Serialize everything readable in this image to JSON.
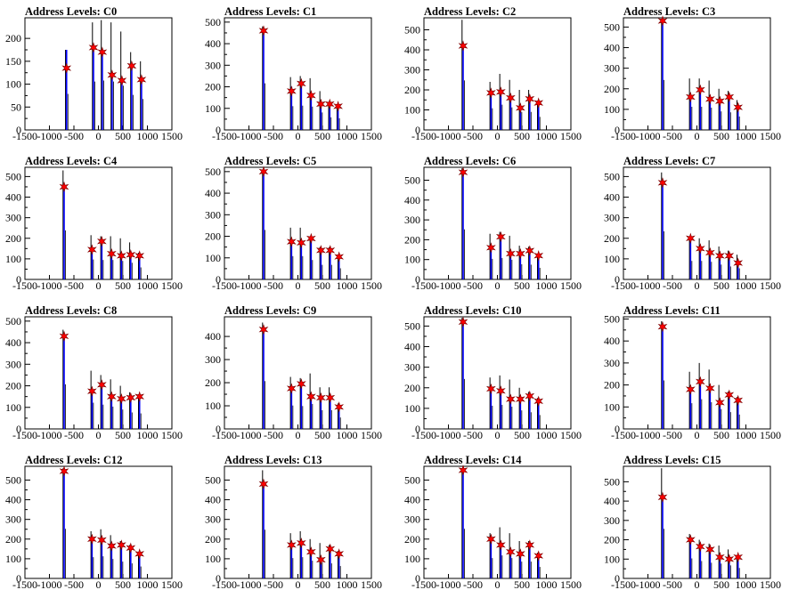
{
  "colors": {
    "histogram": "#000000",
    "fit": "#0000ff",
    "marker": "#ff0000",
    "frame": "#000000"
  },
  "chart_data": [
    {
      "type": "bar",
      "title": "Address Levels: C0",
      "xlim": [
        -1500,
        1500
      ],
      "ylim": [
        0,
        245
      ],
      "xticks": [
        -1500,
        -1000,
        -500,
        0,
        500,
        1000,
        1500
      ],
      "yticks": [
        0,
        50,
        100,
        150,
        200
      ],
      "peaks": [
        {
          "x": -650,
          "hist": 175,
          "fit": 175,
          "marker": 135
        },
        {
          "x": -100,
          "hist": 235,
          "fit": 185,
          "marker": 180
        },
        {
          "x": 80,
          "hist": 240,
          "fit": 170,
          "marker": 170
        },
        {
          "x": 280,
          "hist": 235,
          "fit": 125,
          "marker": 120
        },
        {
          "x": 480,
          "hist": 215,
          "fit": 110,
          "marker": 108
        },
        {
          "x": 680,
          "hist": 170,
          "fit": 140,
          "marker": 140
        },
        {
          "x": 880,
          "hist": 150,
          "fit": 110,
          "marker": 110
        }
      ]
    },
    {
      "type": "bar",
      "title": "Address Levels: C1",
      "xlim": [
        -1500,
        1500
      ],
      "ylim": [
        0,
        520
      ],
      "xticks": [
        -1500,
        -1000,
        -500,
        0,
        500,
        1000,
        1500
      ],
      "yticks": [
        0,
        100,
        200,
        300,
        400,
        500
      ],
      "peaks": [
        {
          "x": -700,
          "hist": 480,
          "fit": 470,
          "marker": 460
        },
        {
          "x": -130,
          "hist": 245,
          "fit": 200,
          "marker": 180
        },
        {
          "x": 70,
          "hist": 250,
          "fit": 220,
          "marker": 215
        },
        {
          "x": 270,
          "hist": 240,
          "fit": 170,
          "marker": 160
        },
        {
          "x": 470,
          "hist": 180,
          "fit": 125,
          "marker": 120
        },
        {
          "x": 650,
          "hist": 130,
          "fit": 125,
          "marker": 120
        },
        {
          "x": 820,
          "hist": 120,
          "fit": 115,
          "marker": 110
        }
      ]
    },
    {
      "type": "bar",
      "title": "Address Levels: C2",
      "xlim": [
        -1500,
        1500
      ],
      "ylim": [
        0,
        560
      ],
      "xticks": [
        -1500,
        -1000,
        -500,
        0,
        500,
        1000,
        1500
      ],
      "yticks": [
        0,
        100,
        200,
        300,
        400,
        500
      ],
      "peaks": [
        {
          "x": -700,
          "hist": 550,
          "fit": 430,
          "marker": 420
        },
        {
          "x": -130,
          "hist": 240,
          "fit": 190,
          "marker": 185
        },
        {
          "x": 70,
          "hist": 280,
          "fit": 200,
          "marker": 190
        },
        {
          "x": 270,
          "hist": 250,
          "fit": 170,
          "marker": 160
        },
        {
          "x": 470,
          "hist": 200,
          "fit": 115,
          "marker": 110
        },
        {
          "x": 660,
          "hist": 200,
          "fit": 160,
          "marker": 155
        },
        {
          "x": 840,
          "hist": 145,
          "fit": 140,
          "marker": 135
        }
      ]
    },
    {
      "type": "bar",
      "title": "Address Levels: C3",
      "xlim": [
        -1500,
        1500
      ],
      "ylim": [
        0,
        545
      ],
      "xticks": [
        -1500,
        -1000,
        -500,
        0,
        500,
        1000,
        1500
      ],
      "yticks": [
        0,
        100,
        200,
        300,
        400,
        500
      ],
      "peaks": [
        {
          "x": -700,
          "hist": 540,
          "fit": 540,
          "marker": 530
        },
        {
          "x": -130,
          "hist": 250,
          "fit": 170,
          "marker": 160
        },
        {
          "x": 70,
          "hist": 250,
          "fit": 200,
          "marker": 195
        },
        {
          "x": 270,
          "hist": 240,
          "fit": 160,
          "marker": 150
        },
        {
          "x": 470,
          "hist": 200,
          "fit": 150,
          "marker": 140
        },
        {
          "x": 660,
          "hist": 190,
          "fit": 165,
          "marker": 160
        },
        {
          "x": 840,
          "hist": 145,
          "fit": 120,
          "marker": 110
        }
      ]
    },
    {
      "type": "bar",
      "title": "Address Levels: C4",
      "xlim": [
        -1500,
        1500
      ],
      "ylim": [
        0,
        545
      ],
      "xticks": [
        -1500,
        -1000,
        -500,
        0,
        500,
        1000,
        1500
      ],
      "yticks": [
        0,
        100,
        200,
        300,
        400,
        500
      ],
      "peaks": [
        {
          "x": -700,
          "hist": 530,
          "fit": 460,
          "marker": 450
        },
        {
          "x": -130,
          "hist": 215,
          "fit": 150,
          "marker": 145
        },
        {
          "x": 70,
          "hist": 210,
          "fit": 190,
          "marker": 185
        },
        {
          "x": 270,
          "hist": 210,
          "fit": 130,
          "marker": 125
        },
        {
          "x": 470,
          "hist": 200,
          "fit": 120,
          "marker": 115
        },
        {
          "x": 660,
          "hist": 180,
          "fit": 125,
          "marker": 120
        },
        {
          "x": 840,
          "hist": 130,
          "fit": 120,
          "marker": 115
        }
      ]
    },
    {
      "type": "bar",
      "title": "Address Levels: C5",
      "xlim": [
        -1500,
        1500
      ],
      "ylim": [
        0,
        520
      ],
      "xticks": [
        -1500,
        -1000,
        -500,
        0,
        500,
        1000,
        1500
      ],
      "yticks": [
        0,
        100,
        200,
        300,
        400,
        500
      ],
      "peaks": [
        {
          "x": -700,
          "hist": 510,
          "fit": 510,
          "marker": 500
        },
        {
          "x": -130,
          "hist": 240,
          "fit": 180,
          "marker": 175
        },
        {
          "x": 70,
          "hist": 240,
          "fit": 175,
          "marker": 170
        },
        {
          "x": 270,
          "hist": 200,
          "fit": 200,
          "marker": 190
        },
        {
          "x": 470,
          "hist": 150,
          "fit": 140,
          "marker": 135
        },
        {
          "x": 660,
          "hist": 150,
          "fit": 140,
          "marker": 135
        },
        {
          "x": 840,
          "hist": 115,
          "fit": 110,
          "marker": 105
        }
      ]
    },
    {
      "type": "bar",
      "title": "Address Levels: C6",
      "xlim": [
        -1500,
        1500
      ],
      "ylim": [
        0,
        565
      ],
      "xticks": [
        -1500,
        -1000,
        -500,
        0,
        500,
        1000,
        1500
      ],
      "yticks": [
        0,
        100,
        200,
        300,
        400,
        500
      ],
      "peaks": [
        {
          "x": -700,
          "hist": 560,
          "fit": 550,
          "marker": 540
        },
        {
          "x": -130,
          "hist": 230,
          "fit": 165,
          "marker": 160
        },
        {
          "x": 70,
          "hist": 240,
          "fit": 220,
          "marker": 215
        },
        {
          "x": 270,
          "hist": 220,
          "fit": 135,
          "marker": 130
        },
        {
          "x": 470,
          "hist": 170,
          "fit": 135,
          "marker": 130
        },
        {
          "x": 660,
          "hist": 165,
          "fit": 150,
          "marker": 145
        },
        {
          "x": 840,
          "hist": 130,
          "fit": 125,
          "marker": 120
        }
      ]
    },
    {
      "type": "bar",
      "title": "Address Levels: C7",
      "xlim": [
        -1500,
        1500
      ],
      "ylim": [
        0,
        545
      ],
      "xticks": [
        -1500,
        -1000,
        -500,
        0,
        500,
        1000,
        1500
      ],
      "yticks": [
        0,
        100,
        200,
        300,
        400,
        500
      ],
      "peaks": [
        {
          "x": -700,
          "hist": 520,
          "fit": 480,
          "marker": 470
        },
        {
          "x": -130,
          "hist": 200,
          "fit": 210,
          "marker": 200
        },
        {
          "x": 70,
          "hist": 200,
          "fit": 160,
          "marker": 150
        },
        {
          "x": 270,
          "hist": 190,
          "fit": 140,
          "marker": 130
        },
        {
          "x": 470,
          "hist": 160,
          "fit": 125,
          "marker": 115
        },
        {
          "x": 660,
          "hist": 140,
          "fit": 125,
          "marker": 115
        },
        {
          "x": 840,
          "hist": 120,
          "fit": 90,
          "marker": 80
        }
      ]
    },
    {
      "type": "bar",
      "title": "Address Levels: C8",
      "xlim": [
        -1500,
        1500
      ],
      "ylim": [
        0,
        520
      ],
      "xticks": [
        -1500,
        -1000,
        -500,
        0,
        500,
        1000,
        1500
      ],
      "yticks": [
        0,
        100,
        200,
        300,
        400,
        500
      ],
      "peaks": [
        {
          "x": -700,
          "hist": 460,
          "fit": 440,
          "marker": 430
        },
        {
          "x": -130,
          "hist": 270,
          "fit": 180,
          "marker": 175
        },
        {
          "x": 70,
          "hist": 250,
          "fit": 210,
          "marker": 205
        },
        {
          "x": 270,
          "hist": 230,
          "fit": 160,
          "marker": 150
        },
        {
          "x": 470,
          "hist": 200,
          "fit": 145,
          "marker": 140
        },
        {
          "x": 660,
          "hist": 170,
          "fit": 150,
          "marker": 145
        },
        {
          "x": 840,
          "hist": 160,
          "fit": 155,
          "marker": 150
        }
      ]
    },
    {
      "type": "bar",
      "title": "Address Levels: C9",
      "xlim": [
        -1500,
        1500
      ],
      "ylim": [
        0,
        485
      ],
      "xticks": [
        -1500,
        -1000,
        -500,
        0,
        500,
        1000,
        1500
      ],
      "yticks": [
        0,
        100,
        200,
        300,
        400
      ],
      "peaks": [
        {
          "x": -700,
          "hist": 460,
          "fit": 440,
          "marker": 430
        },
        {
          "x": -130,
          "hist": 225,
          "fit": 180,
          "marker": 175
        },
        {
          "x": 70,
          "hist": 220,
          "fit": 200,
          "marker": 195
        },
        {
          "x": 270,
          "hist": 240,
          "fit": 145,
          "marker": 140
        },
        {
          "x": 470,
          "hist": 180,
          "fit": 140,
          "marker": 135
        },
        {
          "x": 660,
          "hist": 180,
          "fit": 140,
          "marker": 135
        },
        {
          "x": 840,
          "hist": 110,
          "fit": 100,
          "marker": 95
        }
      ]
    },
    {
      "type": "bar",
      "title": "Address Levels: C10",
      "xlim": [
        -1500,
        1500
      ],
      "ylim": [
        0,
        545
      ],
      "xticks": [
        -1500,
        -1000,
        -500,
        0,
        500,
        1000,
        1500
      ],
      "yticks": [
        0,
        100,
        200,
        300,
        400,
        500
      ],
      "peaks": [
        {
          "x": -700,
          "hist": 540,
          "fit": 530,
          "marker": 520
        },
        {
          "x": -130,
          "hist": 250,
          "fit": 200,
          "marker": 195
        },
        {
          "x": 70,
          "hist": 260,
          "fit": 190,
          "marker": 185
        },
        {
          "x": 270,
          "hist": 240,
          "fit": 150,
          "marker": 145
        },
        {
          "x": 470,
          "hist": 200,
          "fit": 150,
          "marker": 145
        },
        {
          "x": 660,
          "hist": 180,
          "fit": 165,
          "marker": 160
        },
        {
          "x": 840,
          "hist": 150,
          "fit": 145,
          "marker": 135
        }
      ]
    },
    {
      "type": "bar",
      "title": "Address Levels: C11",
      "xlim": [
        -1500,
        1500
      ],
      "ylim": [
        0,
        510
      ],
      "xticks": [
        -1500,
        -1000,
        -500,
        0,
        500,
        1000,
        1500
      ],
      "yticks": [
        0,
        100,
        200,
        300,
        400,
        500
      ],
      "peaks": [
        {
          "x": -700,
          "hist": 490,
          "fit": 475,
          "marker": 465
        },
        {
          "x": -130,
          "hist": 260,
          "fit": 185,
          "marker": 180
        },
        {
          "x": 70,
          "hist": 300,
          "fit": 225,
          "marker": 215
        },
        {
          "x": 270,
          "hist": 270,
          "fit": 190,
          "marker": 185
        },
        {
          "x": 470,
          "hist": 200,
          "fit": 125,
          "marker": 120
        },
        {
          "x": 660,
          "hist": 170,
          "fit": 160,
          "marker": 155
        },
        {
          "x": 840,
          "hist": 145,
          "fit": 140,
          "marker": 130
        }
      ]
    },
    {
      "type": "bar",
      "title": "Address Levels: C12",
      "xlim": [
        -1500,
        1500
      ],
      "ylim": [
        0,
        570
      ],
      "xticks": [
        -1500,
        -1000,
        -500,
        0,
        500,
        1000,
        1500
      ],
      "yticks": [
        0,
        100,
        200,
        300,
        400,
        500
      ],
      "peaks": [
        {
          "x": -700,
          "hist": 560,
          "fit": 550,
          "marker": 545
        },
        {
          "x": -130,
          "hist": 240,
          "fit": 205,
          "marker": 200
        },
        {
          "x": 70,
          "hist": 250,
          "fit": 200,
          "marker": 195
        },
        {
          "x": 270,
          "hist": 220,
          "fit": 170,
          "marker": 165
        },
        {
          "x": 470,
          "hist": 190,
          "fit": 180,
          "marker": 170
        },
        {
          "x": 660,
          "hist": 170,
          "fit": 160,
          "marker": 155
        },
        {
          "x": 840,
          "hist": 135,
          "fit": 130,
          "marker": 125
        }
      ]
    },
    {
      "type": "bar",
      "title": "Address Levels: C13",
      "xlim": [
        -1500,
        1500
      ],
      "ylim": [
        0,
        570
      ],
      "xticks": [
        -1500,
        -1000,
        -500,
        0,
        500,
        1000,
        1500
      ],
      "yticks": [
        0,
        100,
        200,
        300,
        400,
        500
      ],
      "peaks": [
        {
          "x": -700,
          "hist": 550,
          "fit": 490,
          "marker": 480
        },
        {
          "x": -130,
          "hist": 230,
          "fit": 175,
          "marker": 170
        },
        {
          "x": 70,
          "hist": 240,
          "fit": 190,
          "marker": 180
        },
        {
          "x": 270,
          "hist": 200,
          "fit": 140,
          "marker": 135
        },
        {
          "x": 470,
          "hist": 180,
          "fit": 100,
          "marker": 95
        },
        {
          "x": 660,
          "hist": 170,
          "fit": 155,
          "marker": 150
        },
        {
          "x": 840,
          "hist": 140,
          "fit": 130,
          "marker": 125
        }
      ]
    },
    {
      "type": "bar",
      "title": "Address Levels: C14",
      "xlim": [
        -1500,
        1500
      ],
      "ylim": [
        0,
        570
      ],
      "xticks": [
        -1500,
        -1000,
        -500,
        0,
        500,
        1000,
        1500
      ],
      "yticks": [
        0,
        100,
        200,
        300,
        400,
        500
      ],
      "peaks": [
        {
          "x": -700,
          "hist": 560,
          "fit": 555,
          "marker": 550
        },
        {
          "x": -130,
          "hist": 230,
          "fit": 210,
          "marker": 200
        },
        {
          "x": 70,
          "hist": 260,
          "fit": 175,
          "marker": 170
        },
        {
          "x": 270,
          "hist": 230,
          "fit": 140,
          "marker": 135
        },
        {
          "x": 470,
          "hist": 190,
          "fit": 130,
          "marker": 125
        },
        {
          "x": 660,
          "hist": 190,
          "fit": 175,
          "marker": 170
        },
        {
          "x": 840,
          "hist": 130,
          "fit": 125,
          "marker": 115
        }
      ]
    },
    {
      "type": "bar",
      "title": "Address Levels: C15",
      "xlim": [
        -1500,
        1500
      ],
      "ylim": [
        0,
        580
      ],
      "xticks": [
        -1500,
        -1000,
        -500,
        0,
        500,
        1000,
        1500
      ],
      "yticks": [
        0,
        100,
        200,
        300,
        400,
        500
      ],
      "peaks": [
        {
          "x": -700,
          "hist": 570,
          "fit": 430,
          "marker": 420
        },
        {
          "x": -130,
          "hist": 230,
          "fit": 210,
          "marker": 200
        },
        {
          "x": 70,
          "hist": 200,
          "fit": 170,
          "marker": 165
        },
        {
          "x": 270,
          "hist": 180,
          "fit": 160,
          "marker": 150
        },
        {
          "x": 470,
          "hist": 170,
          "fit": 115,
          "marker": 110
        },
        {
          "x": 660,
          "hist": 150,
          "fit": 105,
          "marker": 100
        },
        {
          "x": 840,
          "hist": 120,
          "fit": 115,
          "marker": 110
        }
      ]
    }
  ]
}
